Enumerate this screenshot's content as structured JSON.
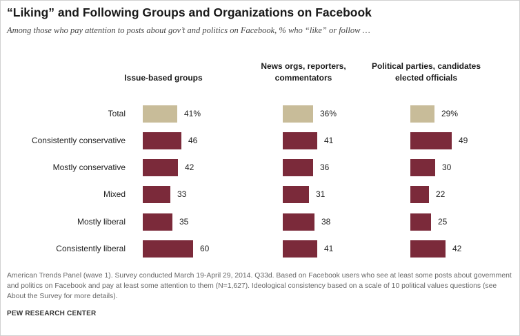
{
  "title": "“Liking” and Following Groups and Organizations on Facebook",
  "subtitle": "Among those who pay attention to posts about gov’t and politics on Facebook, % who “like” or follow …",
  "note": "American Trends Panel (wave 1). Survey conducted March 19-April 29, 2014. Q33d.  Based on Facebook users who see at least some posts about government and politics on Facebook and pay at least some attention to them (N=1,627). Ideological consistency based on a scale of 10 political values questions (see About the Survey for more details).",
  "source": "PEW RESEARCH CENTER",
  "colors": {
    "total": "#c8bc99",
    "group": "#7b2a3a"
  },
  "chart_data": {
    "type": "bar",
    "orientation": "horizontal",
    "categories": [
      "Total",
      "Consistently conservative",
      "Mostly conservative",
      "Mixed",
      "Mostly liberal",
      "Consistently liberal"
    ],
    "series": [
      {
        "name": "Issue-based groups",
        "values": [
          41,
          46,
          42,
          33,
          35,
          60
        ],
        "labels": [
          "41%",
          "46",
          "42",
          "33",
          "35",
          "60"
        ]
      },
      {
        "name": "News orgs, reporters, commentators",
        "values": [
          36,
          41,
          36,
          31,
          38,
          41
        ],
        "labels": [
          "36%",
          "41",
          "36",
          "31",
          "38",
          "41"
        ]
      },
      {
        "name": "Political parties, candidates elected officials",
        "values": [
          29,
          49,
          30,
          22,
          25,
          42
        ],
        "labels": [
          "29%",
          "49",
          "30",
          "22",
          "25",
          "42"
        ]
      }
    ],
    "xlim": [
      0,
      100
    ],
    "grid": false,
    "legend": "none"
  }
}
